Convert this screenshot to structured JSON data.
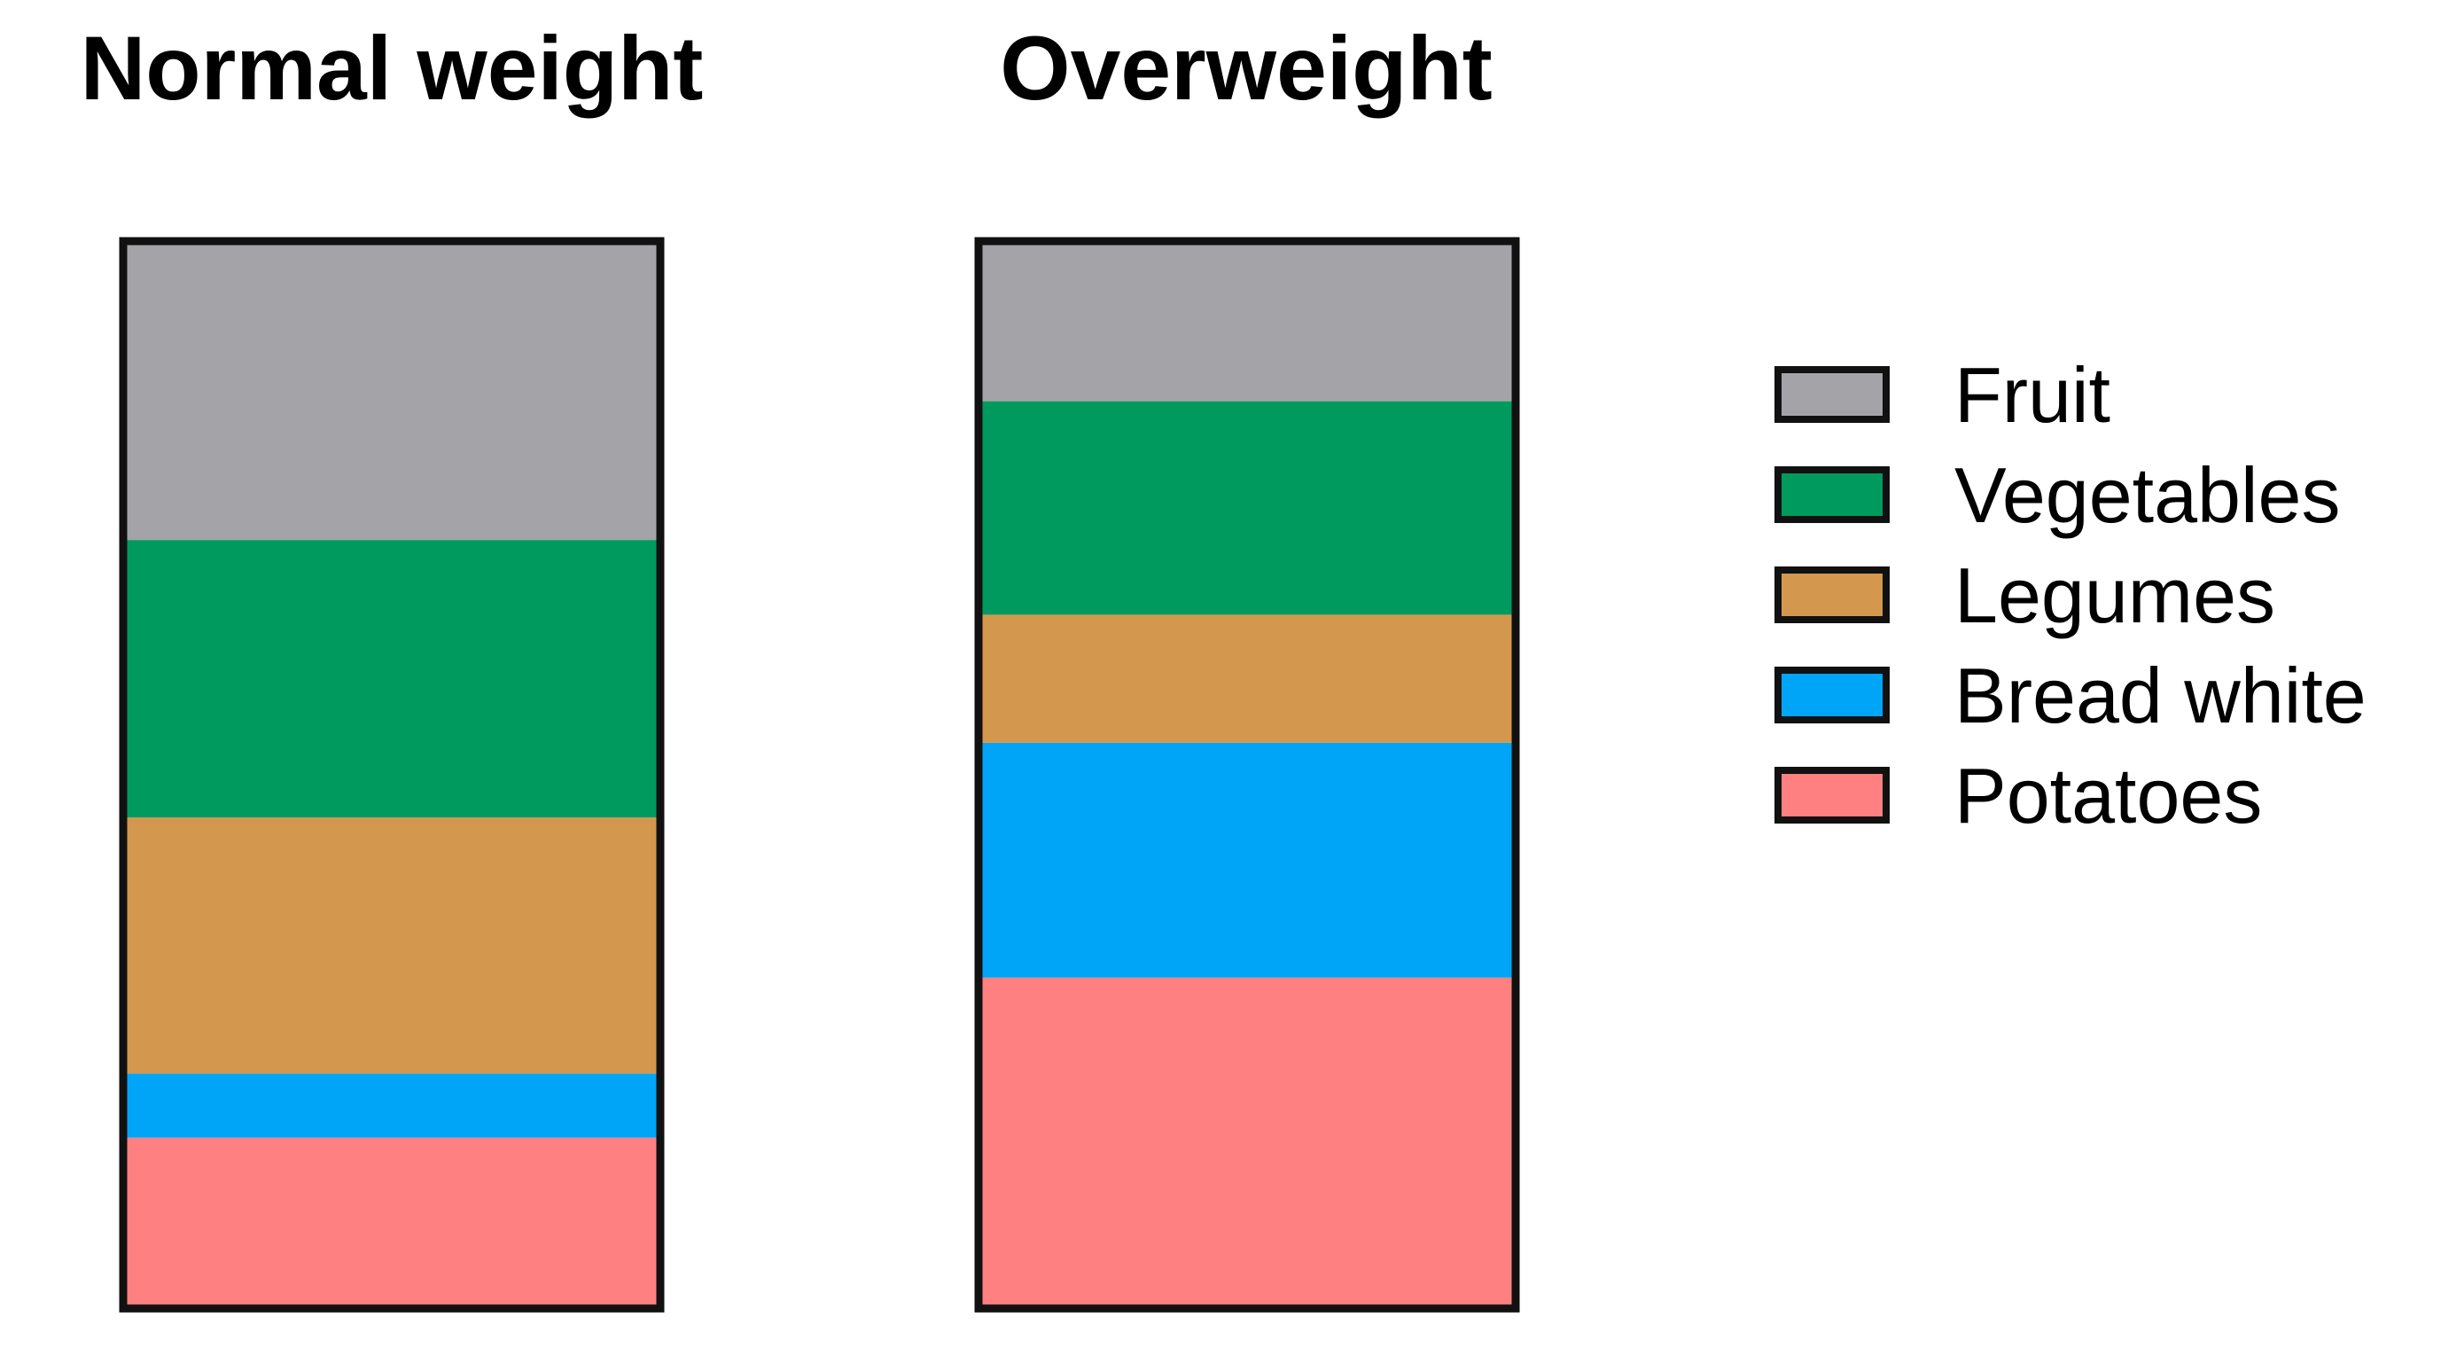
{
  "chart_data": {
    "type": "bar",
    "stacked": true,
    "normalized": true,
    "categories": [
      "Normal weight",
      "Overweight"
    ],
    "series": [
      {
        "name": "Fruit",
        "color": "#a3a3a8",
        "values": [
          28,
          15
        ]
      },
      {
        "name": "Vegetables",
        "color": "#009a5e",
        "values": [
          26,
          20
        ]
      },
      {
        "name": "Legumes",
        "color": "#d3974d",
        "values": [
          24,
          12
        ]
      },
      {
        "name": "Bread white",
        "color": "#00a5f7",
        "values": [
          6,
          22
        ]
      },
      {
        "name": "Potatoes",
        "color": "#fe8080",
        "values": [
          16,
          31
        ]
      }
    ],
    "ylim": [
      0,
      100
    ],
    "legend_position": "right",
    "stack_order": "bottom-to-top: Potatoes, Bread white, Legumes, Vegetables, Fruit",
    "grid": false,
    "axes_visible": false
  }
}
